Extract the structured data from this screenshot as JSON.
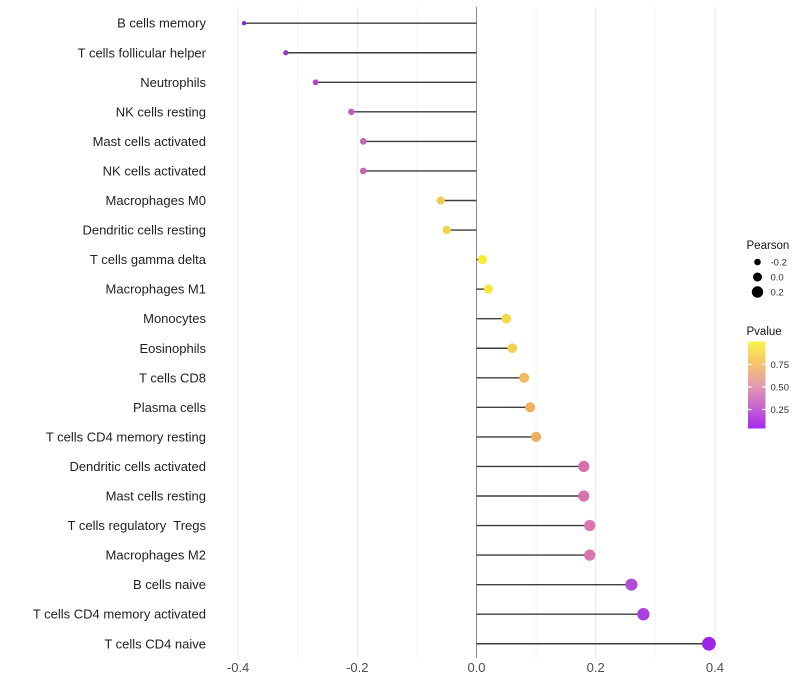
{
  "chart_data": {
    "type": "lollipop",
    "title": "",
    "orientation": "horizontal",
    "xlabel": "",
    "ylabel": "",
    "categories": [
      "B cells memory",
      "T cells follicular helper",
      "Neutrophils",
      "NK cells resting",
      "Mast cells activated",
      "NK cells activated",
      "Macrophages M0",
      "Dendritic cells resting",
      "T cells gamma delta",
      "Macrophages M1",
      "Monocytes",
      "Eosinophils",
      "T cells CD8",
      "Plasma cells",
      "T cells CD4 memory resting",
      "Dendritic cells activated",
      "Mast cells resting",
      "T cells regulatory  Tregs",
      "Macrophages M2",
      "B cells naive",
      "T cells CD4 memory activated",
      "T cells CD4 naive"
    ],
    "series": [
      {
        "name": "Pearson",
        "values": [
          -0.39,
          -0.32,
          -0.27,
          -0.21,
          -0.19,
          -0.19,
          -0.06,
          -0.05,
          0.01,
          0.02,
          0.05,
          0.06,
          0.08,
          0.09,
          0.1,
          0.18,
          0.18,
          0.19,
          0.19,
          0.26,
          0.28,
          0.39
        ]
      }
    ],
    "point_colors": [
      "#8826C8",
      "#9C35D4",
      "#AE4AC8",
      "#C05FB9",
      "#C666B4",
      "#C666B4",
      "#F0CB52",
      "#F3D24C",
      "#F8EC33",
      "#F7E63C",
      "#F5DA47",
      "#F2D04F",
      "#EFB95C",
      "#EEB25F",
      "#EDAE62",
      "#D76FA9",
      "#D873AC",
      "#D876AE",
      "#D876AE",
      "#B14BD8",
      "#AB3FDE",
      "#9D23E6"
    ],
    "xlim": [
      -0.44,
      0.44
    ],
    "x_ticks": [
      -0.4,
      -0.2,
      0.0,
      0.2,
      0.4
    ],
    "x_tick_labels": [
      "-0.4",
      "-0.2",
      "0.0",
      "0.2",
      "0.4"
    ],
    "grid": "light vertical gridlines every 0.1, panel background white",
    "zero_line_x": 0.0,
    "stem_color": "#3d3d3d",
    "zero_line_color": "#8c8c8c",
    "legend_position": "right",
    "legends": {
      "size": {
        "title": "Pearson",
        "entries": [
          {
            "label": "-0.2",
            "value": -0.2
          },
          {
            "label": "0.0",
            "value": 0.0
          },
          {
            "label": "0.2",
            "value": 0.2
          }
        ],
        "dot_color": "#000000"
      },
      "color": {
        "title": "Pvalue",
        "tick_labels": [
          "0.75",
          "0.50",
          "0.25"
        ],
        "gradient_top_to_bottom": [
          "#FBF34B",
          "#F5C56A",
          "#E49BAE",
          "#C966CF",
          "#A428F2"
        ],
        "domain_top_to_bottom": [
          1.0,
          0.0
        ]
      }
    }
  }
}
